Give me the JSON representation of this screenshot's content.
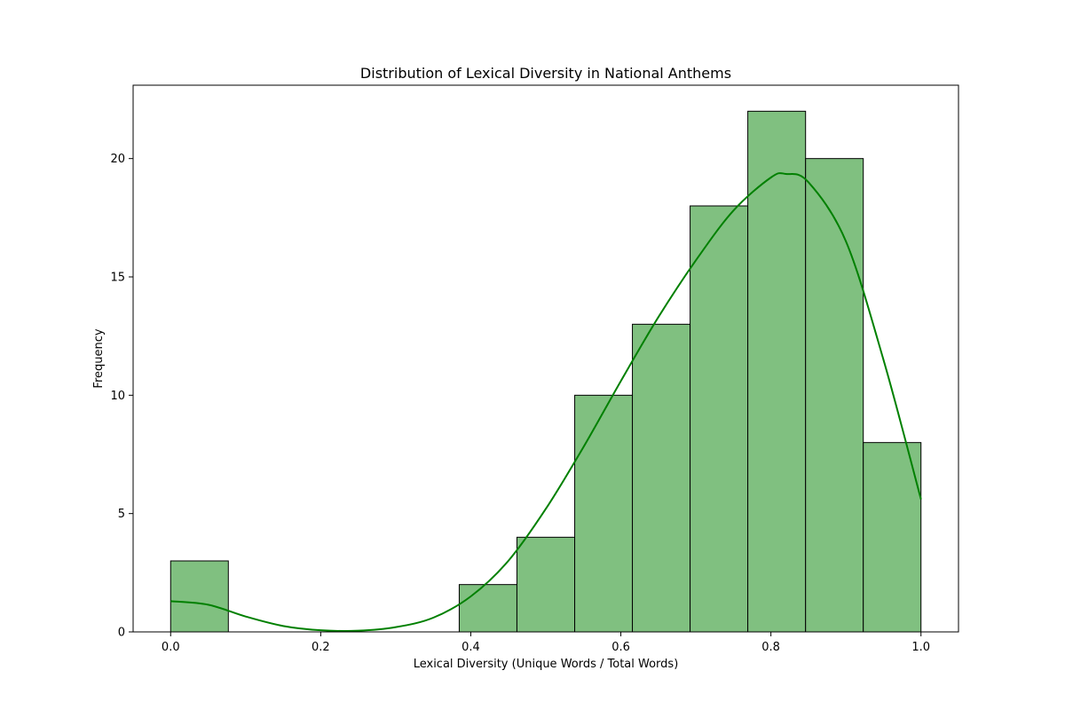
{
  "chart_data": {
    "type": "bar",
    "title": "Distribution of Lexical Diversity in National Anthems",
    "xlabel": "Lexical Diversity (Unique Words / Total Words)",
    "ylabel": "Frequency",
    "xlim": [
      -0.05,
      1.05
    ],
    "ylim": [
      0,
      23.1
    ],
    "xticks": [
      "0.0",
      "0.2",
      "0.4",
      "0.6",
      "0.8",
      "1.0"
    ],
    "yticks": [
      "0",
      "5",
      "10",
      "15",
      "20"
    ],
    "grid": false,
    "bins": [
      {
        "x0": 0.0,
        "x1": 0.0769,
        "count": 3
      },
      {
        "x0": 0.0769,
        "x1": 0.1538,
        "count": 0
      },
      {
        "x0": 0.1538,
        "x1": 0.2308,
        "count": 0
      },
      {
        "x0": 0.2308,
        "x1": 0.3077,
        "count": 0
      },
      {
        "x0": 0.3077,
        "x1": 0.3846,
        "count": 0
      },
      {
        "x0": 0.3846,
        "x1": 0.4615,
        "count": 2
      },
      {
        "x0": 0.4615,
        "x1": 0.5385,
        "count": 4
      },
      {
        "x0": 0.5385,
        "x1": 0.6154,
        "count": 10
      },
      {
        "x0": 0.6154,
        "x1": 0.6923,
        "count": 13
      },
      {
        "x0": 0.6923,
        "x1": 0.7692,
        "count": 18
      },
      {
        "x0": 0.7692,
        "x1": 0.8462,
        "count": 22
      },
      {
        "x0": 0.8462,
        "x1": 0.9231,
        "count": 20
      },
      {
        "x0": 0.9231,
        "x1": 1.0,
        "count": 8
      }
    ],
    "kde": {
      "x": [
        0.0,
        0.05,
        0.1,
        0.15,
        0.2,
        0.25,
        0.3,
        0.35,
        0.4,
        0.45,
        0.5,
        0.55,
        0.6,
        0.65,
        0.7,
        0.75,
        0.8,
        0.82,
        0.85,
        0.9,
        0.95,
        1.0
      ],
      "y": [
        1.3,
        1.15,
        0.65,
        0.25,
        0.07,
        0.05,
        0.2,
        0.6,
        1.5,
        3.0,
        5.2,
        7.8,
        10.6,
        13.3,
        15.7,
        17.8,
        19.2,
        19.35,
        19.0,
        16.5,
        11.5,
        5.6
      ]
    },
    "colors": {
      "bar_fill": "#80c080",
      "bar_edge": "#000000",
      "kde_line": "#008000"
    }
  }
}
